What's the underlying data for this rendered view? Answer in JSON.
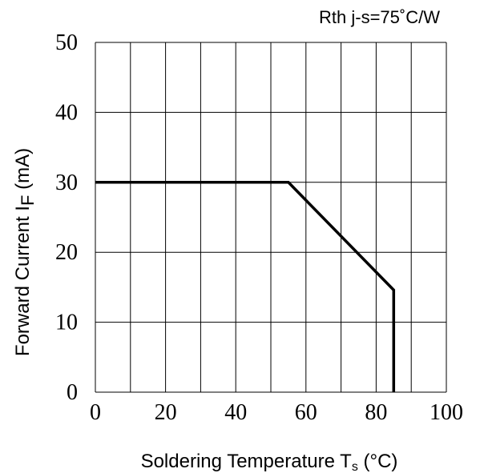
{
  "chart_data": {
    "type": "line",
    "annotation": "Rth j-s=75˚C/W",
    "ylabel_main": "Forward Current I",
    "ylabel_sub": "F",
    "ylabel_unit": " (mA)",
    "xlabel_main": "Soldering Temperature T",
    "xlabel_sub": "s",
    "xlabel_unit": " (°C)",
    "xlim": [
      0,
      100
    ],
    "ylim": [
      0,
      50
    ],
    "x_tick_labels": [
      "0",
      "20",
      "40",
      "60",
      "80",
      "100"
    ],
    "y_tick_labels": [
      "0",
      "10",
      "20",
      "30",
      "40",
      "50"
    ],
    "x_grid": [
      0,
      10,
      20,
      30,
      40,
      50,
      60,
      70,
      80,
      90,
      100
    ],
    "y_grid": [
      0,
      10,
      20,
      30,
      40,
      50
    ],
    "grid": true,
    "series": [
      {
        "x": [
          0,
          55,
          85,
          85
        ],
        "y": [
          30,
          30,
          14.6,
          0
        ]
      }
    ]
  }
}
